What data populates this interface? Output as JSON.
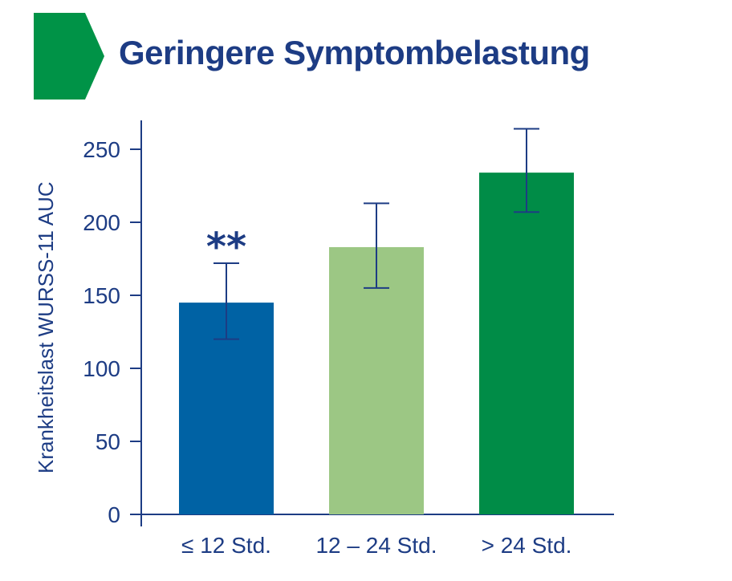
{
  "title": "Geringere Symptombelastung",
  "colors": {
    "title": "#1d3c84",
    "axis": "#1d3c84",
    "arrow": "#009347"
  },
  "chart_data": {
    "type": "bar",
    "title": "Geringere Symptombelastung",
    "ylabel": "Krankheitslast WURSS-11 AUC",
    "xlabel": "",
    "ylim": [
      0,
      270
    ],
    "yticks": [
      0,
      50,
      100,
      150,
      200,
      250
    ],
    "categories": [
      "≤ 12 Std.",
      "12 – 24 Std.",
      "> 24 Std."
    ],
    "values": [
      145,
      183,
      234
    ],
    "error_low": [
      120,
      155,
      207
    ],
    "error_high": [
      172,
      213,
      264
    ],
    "bar_colors": [
      "#0062a4",
      "#9cc784",
      "#008c47"
    ],
    "annotations": [
      {
        "category": "≤ 12 Std.",
        "text": "**"
      }
    ],
    "grid": false,
    "legend": "none"
  }
}
